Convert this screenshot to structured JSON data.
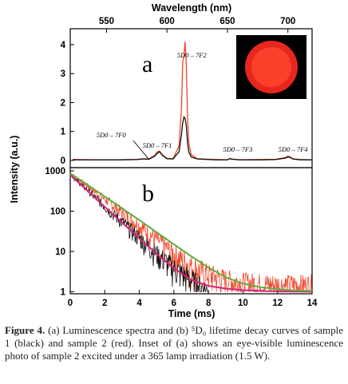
{
  "figure": {
    "caption_label": "Figure 4.",
    "caption_text": " (a) Luminescence spectra and (b) ⁵D₀ lifetime decay curves of sample 1 (black) and sample 2 (red). Inset of (a) shows an eye-visible luminescence photo of sample 2 excited under a 365 lamp irradiation (1.5 W)."
  },
  "colors": {
    "sample1": "#111111",
    "sample2": "#f0462a",
    "fit_magenta": "#d6247a",
    "fit_green": "#5fae3c",
    "inset_glow": "#e8261e"
  },
  "chart_data": [
    {
      "type": "line",
      "panel_label": "a",
      "xlabel": "Wavelength (nm)",
      "x_axis_position": "top",
      "xlim": [
        520,
        720
      ],
      "xticks": [
        550,
        600,
        650,
        700
      ],
      "ylabel": "Intensity (a.u.)",
      "ylim": [
        -0.25,
        4.55
      ],
      "yticks": [
        0,
        1,
        2,
        3,
        4
      ],
      "annotations": [
        {
          "text": "5D0 – 7F0",
          "x": 580
        },
        {
          "text": "5D0 – 7F1",
          "x": 593
        },
        {
          "text": "5D0 – 7F2",
          "x": 615
        },
        {
          "text": "5D0 – 7F3",
          "x": 653
        },
        {
          "text": "5D0 – 7F4",
          "x": 700
        }
      ],
      "inset": "luminescence-photo",
      "series": [
        {
          "label_ref": "sample1",
          "x": [
            522,
            540,
            560,
            575,
            580,
            585,
            590,
            592,
            594,
            596,
            600,
            605,
            610,
            612,
            613,
            614,
            615,
            616,
            617,
            618,
            620,
            625,
            640,
            650,
            652,
            654,
            660,
            680,
            690,
            698,
            700,
            702,
            704,
            710,
            720
          ],
          "y": [
            0.02,
            0.02,
            0.02,
            0.03,
            0.05,
            0.04,
            0.15,
            0.25,
            0.3,
            0.18,
            0.06,
            0.05,
            0.3,
            0.9,
            1.3,
            1.5,
            1.45,
            1.2,
            0.6,
            0.3,
            0.12,
            0.05,
            0.02,
            0.02,
            0.06,
            0.04,
            0.02,
            0.02,
            0.03,
            0.08,
            0.12,
            0.1,
            0.05,
            0.02,
            0.02
          ]
        },
        {
          "label_ref": "sample2",
          "x": [
            522,
            540,
            560,
            575,
            580,
            585,
            590,
            592,
            594,
            596,
            600,
            605,
            610,
            612,
            613,
            614,
            615,
            616,
            617,
            618,
            620,
            625,
            640,
            650,
            652,
            654,
            660,
            680,
            690,
            698,
            700,
            702,
            704,
            710,
            720
          ],
          "y": [
            0.03,
            0.02,
            0.02,
            0.03,
            0.06,
            0.05,
            0.18,
            0.3,
            0.32,
            0.2,
            0.07,
            0.06,
            0.5,
            1.8,
            3.4,
            3.6,
            4.1,
            3.3,
            1.5,
            0.6,
            0.2,
            0.06,
            0.03,
            0.02,
            0.07,
            0.05,
            0.02,
            0.03,
            0.04,
            0.1,
            0.15,
            0.12,
            0.06,
            0.03,
            0.02
          ]
        }
      ]
    },
    {
      "type": "line",
      "panel_label": "b",
      "xlabel": "Time (ms)",
      "xlim": [
        0,
        14
      ],
      "xticks": [
        0,
        2,
        4,
        6,
        8,
        10,
        12,
        14
      ],
      "yscale": "log",
      "ylim": [
        1,
        1000
      ],
      "yticks": [
        1,
        10,
        100,
        1000
      ],
      "ylabel": "Intensity (a.u.)",
      "series": [
        {
          "label_ref": "sample1",
          "fit": false,
          "x": [
            0,
            1,
            2,
            3,
            4,
            5,
            6,
            7,
            8
          ],
          "y": [
            800,
            330,
            130,
            55,
            22,
            9,
            4,
            2,
            1
          ]
        },
        {
          "label_ref": "sample2",
          "fit": false,
          "x": [
            0,
            1,
            2,
            3,
            4,
            5,
            6,
            7,
            8,
            9,
            10,
            11,
            12,
            13,
            14
          ],
          "y": [
            850,
            420,
            200,
            95,
            45,
            20,
            9,
            4.5,
            2.8,
            2,
            1.7,
            1.6,
            1.5,
            1.5,
            1.5
          ]
        },
        {
          "label_ref": "fit_magenta",
          "fit": true,
          "x": [
            0,
            1,
            2,
            3,
            4,
            5,
            6,
            7,
            8,
            9,
            10,
            11,
            12,
            13,
            14
          ],
          "y": [
            800,
            320,
            128,
            52,
            21,
            8.7,
            3.8,
            2,
            1.4,
            1.2,
            1.1,
            1.05,
            1.02,
            1.01,
            1.0
          ]
        },
        {
          "label_ref": "fit_green",
          "fit": true,
          "x": [
            0,
            1,
            2,
            3,
            4,
            5,
            6,
            7,
            8,
            9,
            10,
            11,
            12,
            13,
            14
          ],
          "y": [
            870,
            450,
            230,
            118,
            60,
            30,
            15,
            7.6,
            4.0,
            2.3,
            1.6,
            1.3,
            1.15,
            1.08,
            1.05
          ]
        }
      ]
    }
  ]
}
